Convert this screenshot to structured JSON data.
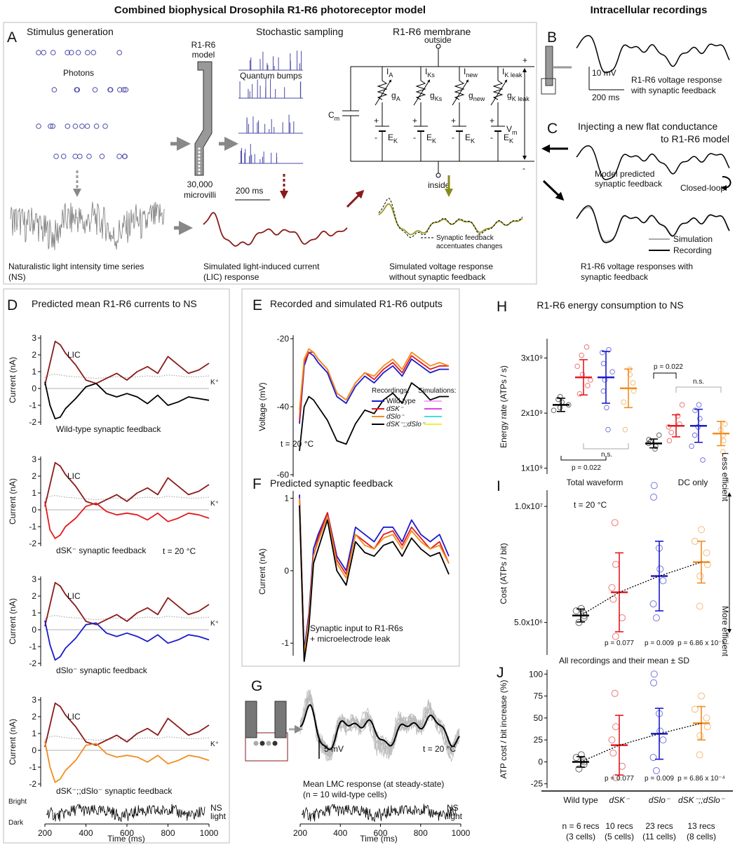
{
  "title": "Combined biophysical Drosophila R1-R6 photoreceptor model",
  "title_right": "Intracellular recordings",
  "panel_a": {
    "label": "A",
    "stimulus_generation": "Stimulus generation",
    "photons": "Photons",
    "model": [
      "R1-R6",
      "model"
    ],
    "microvilli": [
      "30,000",
      "microvilli"
    ],
    "stochastic_sampling": "Stochastic sampling",
    "quantum_bumps": "Quantum bumps",
    "membrane": "R1-R6 membrane",
    "outside": "outside",
    "inside": "inside",
    "scale_bar": "200 ms",
    "ns_caption": [
      "Naturalistic light intensity time series",
      "(NS)"
    ],
    "lic_caption": [
      "Simulated light-induced current",
      "(LIC) response"
    ],
    "voltage_caption": [
      "Simulated voltage response",
      "without synaptic feedback"
    ],
    "feedback_note": [
      "Synaptic feedback",
      "accentuates changes"
    ],
    "circuit": {
      "capacitance": [
        "C",
        "m"
      ],
      "voltage": [
        "V",
        "m"
      ],
      "plus": "+",
      "minus": "-",
      "branches": [
        {
          "current": [
            "I",
            "A"
          ],
          "conductance": [
            "g",
            "A"
          ],
          "reversal": [
            "E",
            "K"
          ]
        },
        {
          "current": [
            "I",
            "Ks"
          ],
          "conductance": [
            "g",
            "Ks"
          ],
          "reversal": [
            "E",
            "K"
          ]
        },
        {
          "current": [
            "I",
            "new"
          ],
          "conductance": [
            "g",
            "new"
          ],
          "reversal": [
            "E",
            "K"
          ]
        },
        {
          "current": [
            "I",
            "K leak"
          ],
          "conductance": [
            "g",
            "K leak"
          ],
          "reversal": [
            "E",
            "K"
          ]
        }
      ]
    }
  },
  "panel_b": {
    "label": "B",
    "scale_v": "10 mV",
    "scale_t": "200 ms",
    "caption": [
      "R1-R6 voltage response",
      "with synaptic feedback"
    ]
  },
  "panel_c": {
    "label": "C",
    "title": [
      "Injecting a new flat conductance",
      "to R1-R6 model"
    ],
    "model_note": [
      "Model predicted",
      "synaptic feedback"
    ],
    "closed_loop": "Closed-loop",
    "legend": [
      {
        "name": "Simulation",
        "color": "#aaaaaa"
      },
      {
        "name": "Recording",
        "color": "#000000"
      }
    ],
    "caption": [
      "R1-R6 voltage responses with",
      "synaptic feedback"
    ]
  },
  "panel_d": {
    "label": "D",
    "title": "Predicted mean R1-R6 currents to NS",
    "y_label": "Current (nA)",
    "x_label": "Time (ms)",
    "ylim": [
      -2,
      3
    ],
    "yticks": [
      -2,
      -1,
      0,
      1,
      2,
      3
    ],
    "xlim": [
      200,
      1000
    ],
    "xticks": [
      200,
      400,
      600,
      800,
      1000
    ],
    "temperature": "t = 20 °C",
    "x": [
      200,
      225,
      250,
      275,
      300,
      350,
      400,
      450,
      500,
      550,
      600,
      650,
      700,
      750,
      800,
      850,
      900,
      950,
      1000
    ],
    "lic": {
      "name": "LIC",
      "color": "#8b1a1a",
      "values": [
        0.2,
        1.5,
        2.8,
        2.6,
        2.1,
        1.4,
        0.5,
        0.3,
        0.6,
        0.9,
        0.5,
        1.0,
        1.3,
        0.9,
        1.9,
        1.4,
        0.9,
        1.1,
        1.5
      ]
    },
    "k": {
      "name": "K⁺",
      "color": "#999999",
      "values": [
        0.65,
        0.8,
        0.85,
        0.8,
        0.75,
        0.7,
        0.65,
        0.6,
        0.65,
        0.7,
        0.65,
        0.7,
        0.75,
        0.7,
        0.8,
        0.75,
        0.7,
        0.7,
        0.75
      ]
    },
    "feedback": [
      {
        "name": "Wild-type synaptic feedback",
        "color": "#000000",
        "values": [
          0.4,
          -1.0,
          -1.8,
          -1.7,
          -1.2,
          -0.6,
          0.1,
          0.3,
          -0.3,
          -0.5,
          -0.3,
          -0.5,
          -0.9,
          -0.4,
          -1.0,
          -0.8,
          -0.5,
          -0.6,
          -0.7
        ]
      },
      {
        "name": "dSK⁻ synaptic feedback",
        "color": "#e31a1c",
        "values": [
          0.5,
          -1.2,
          -1.7,
          -1.5,
          -1.0,
          -0.5,
          0.2,
          0.4,
          -0.1,
          -0.3,
          -0.2,
          -0.3,
          -0.6,
          -0.2,
          -0.7,
          -0.5,
          -0.2,
          -0.3,
          -0.5
        ]
      },
      {
        "name": "dSlo⁻ synaptic feedback",
        "color": "#1a1acc",
        "values": [
          0.55,
          -0.9,
          -1.8,
          -1.6,
          -1.1,
          -0.5,
          0.3,
          0.4,
          -0.2,
          -0.4,
          -0.2,
          -0.4,
          -0.7,
          -0.3,
          -0.8,
          -0.6,
          -0.3,
          -0.4,
          -0.6
        ]
      },
      {
        "name": "dSK⁻;;dSlo⁻ synaptic feedback",
        "color": "#f28c1f",
        "values": [
          0.55,
          -1.0,
          -1.9,
          -1.7,
          -1.2,
          -0.6,
          0.3,
          0.4,
          -0.2,
          -0.4,
          -0.3,
          -0.4,
          -0.7,
          -0.3,
          -0.8,
          -0.6,
          -0.3,
          -0.4,
          -0.6
        ]
      }
    ],
    "light": {
      "bright": "Bright",
      "dark": "Dark",
      "name": [
        "NS",
        "light"
      ]
    }
  },
  "panel_e": {
    "label": "E",
    "title": "Recorded and simulated R1-R6 outputs",
    "y_label": "Voltage (mV)",
    "ylim": [
      -60,
      -20
    ],
    "yticks": [
      -60,
      -40,
      -20
    ],
    "xlim": [
      200,
      1000
    ],
    "temperature": "t = 20 °C",
    "legend_recordings": "Recordings:",
    "legend_simulations": "Simulations:",
    "x": [
      200,
      225,
      250,
      275,
      300,
      350,
      400,
      450,
      500,
      550,
      600,
      650,
      700,
      750,
      800,
      850,
      900,
      950,
      1000
    ],
    "series": [
      {
        "name": "Wild-type",
        "color": "#1a1acc",
        "sim_color": "#f4a6f4",
        "values": [
          -45,
          -28,
          -24,
          -25,
          -27,
          -30,
          -37,
          -39,
          -34,
          -31,
          -33,
          -30,
          -28,
          -31,
          -26,
          -28,
          -30,
          -29,
          -29
        ]
      },
      {
        "name": "dSK⁻",
        "color": "#e31a1c",
        "sim_color": "#e040e0",
        "values": [
          -44,
          -27,
          -24,
          -24,
          -26,
          -29,
          -36,
          -38,
          -33,
          -30,
          -32,
          -29,
          -27,
          -30,
          -25,
          -27,
          -29,
          -28,
          -28
        ]
      },
      {
        "name": "dSlo⁻",
        "color": "#f28c1f",
        "sim_color": "#40e0e0",
        "values": [
          -41,
          -26,
          -23,
          -24,
          -26,
          -29,
          -36,
          -38,
          -33,
          -30,
          -31,
          -28,
          -26,
          -29,
          -24,
          -26,
          -28,
          -27,
          -28
        ]
      },
      {
        "name": "dSK⁻;;dSlo⁻",
        "color": "#000000",
        "sim_color": "#f0f040",
        "values": [
          -53,
          -40,
          -37,
          -38,
          -40,
          -44,
          -50,
          -51,
          -45,
          -41,
          -42,
          -38,
          -36,
          -39,
          -33,
          -35,
          -38,
          -37,
          -37
        ]
      }
    ]
  },
  "panel_f": {
    "label": "F",
    "title": "Predicted synaptic feedback",
    "y_label": "Current (nA)",
    "ylim": [
      -1.25,
      1.15
    ],
    "yticks": [
      -1,
      0,
      1
    ],
    "xlim": [
      200,
      1000
    ],
    "note": [
      "Synaptic input to R1-R6s",
      "+ microelectrode leak"
    ],
    "x": [
      200,
      225,
      250,
      275,
      300,
      350,
      400,
      450,
      500,
      550,
      600,
      650,
      700,
      750,
      800,
      850,
      900,
      950,
      1000
    ],
    "series": [
      {
        "color": "#1a1acc",
        "values": [
          1.05,
          -1.1,
          -0.6,
          0.3,
          0.5,
          0.8,
          0.2,
          0.0,
          0.6,
          0.5,
          0.4,
          0.6,
          0.6,
          0.4,
          0.7,
          0.5,
          0.4,
          0.5,
          0.2
        ]
      },
      {
        "color": "#e31a1c",
        "values": [
          1.0,
          -1.2,
          -0.65,
          0.2,
          0.45,
          0.8,
          0.15,
          -0.05,
          0.5,
          0.4,
          0.3,
          0.5,
          0.55,
          0.35,
          0.6,
          0.45,
          0.3,
          0.4,
          0.1
        ]
      },
      {
        "color": "#f28c1f",
        "values": [
          1.0,
          -1.15,
          -0.7,
          0.2,
          0.4,
          0.75,
          0.1,
          -0.1,
          0.5,
          0.35,
          0.3,
          0.45,
          0.5,
          0.3,
          0.55,
          0.4,
          0.3,
          0.35,
          0.1
        ]
      },
      {
        "color": "#000000",
        "values": [
          0.9,
          -1.25,
          -0.8,
          0.1,
          0.3,
          0.7,
          0.0,
          -0.2,
          0.4,
          0.25,
          0.2,
          0.35,
          0.4,
          0.2,
          0.45,
          0.3,
          0.2,
          0.25,
          -0.05
        ]
      }
    ]
  },
  "panel_g": {
    "label": "G",
    "scale_bar": "5 mV",
    "temperature": "t = 20 °C",
    "caption": [
      "Mean LMC response (at steady-state)",
      "(n = 10 wild-type cells)"
    ],
    "light": [
      "NS",
      "light"
    ],
    "x_label": "Time (ms)",
    "xlim": [
      200,
      1000
    ],
    "xticks": [
      200,
      400,
      600,
      800,
      1000
    ]
  },
  "genotypes": [
    {
      "name": "Wild type",
      "color": "#000000",
      "recs": "n = 6 recs",
      "cells": "(3 cells)"
    },
    {
      "name": "dSK⁻",
      "color": "#e31a1c",
      "recs": "10 recs",
      "cells": "(5 cells)"
    },
    {
      "name": "dSlo⁻",
      "color": "#1a1acc",
      "recs": "23 recs",
      "cells": "(11 cells)"
    },
    {
      "name": "dSK⁻;;dSlo⁻",
      "color": "#f28c1f",
      "recs": "13 recs",
      "cells": "(8 cells)"
    }
  ],
  "panel_h": {
    "label": "H",
    "title": "R1-R6 energy consumption to NS",
    "y_label": "Energy rate (ATPs / s)",
    "ylim": [
      920000000,
      3300000000
    ],
    "yticks": [
      {
        "value": 1000000000,
        "label": "1x10⁹"
      },
      {
        "value": 2000000000,
        "label": "2x10⁹"
      },
      {
        "value": 3000000000,
        "label": "3x10⁹"
      }
    ],
    "group_labels": [
      "Total waveform",
      "DC only"
    ],
    "p_total": "p = 0.022",
    "p_dc": "p = 0.022",
    "ns_total": "n.s.",
    "ns_dc": "n.s.",
    "total": [
      {
        "mean": 2150000000,
        "sd": 120000000,
        "points": [
          2050000000,
          2100000000,
          2150000000,
          2200000000,
          2250000000,
          2300000000
        ]
      },
      {
        "mean": 2650000000,
        "sd": 320000000,
        "points": [
          2350000000,
          2500000000,
          2600000000,
          2700000000,
          2850000000,
          3050000000,
          3200000000
        ]
      },
      {
        "mean": 2650000000,
        "sd": 470000000,
        "points": [
          1700000000,
          2100000000,
          2400000000,
          2600000000,
          2750000000,
          2900000000,
          3100000000,
          3150000000
        ]
      },
      {
        "mean": 2450000000,
        "sd": 350000000,
        "points": [
          1700000000,
          2200000000,
          2400000000,
          2550000000,
          2700000000,
          2800000000
        ]
      }
    ],
    "dc": [
      {
        "mean": 1450000000,
        "sd": 80000000,
        "points": [
          1350000000,
          1400000000,
          1450000000,
          1480000000,
          1520000000,
          1600000000
        ]
      },
      {
        "mean": 1770000000,
        "sd": 200000000,
        "points": [
          1500000000,
          1650000000,
          1750000000,
          1800000000,
          1950000000,
          2150000000
        ]
      },
      {
        "mean": 1770000000,
        "sd": 300000000,
        "points": [
          1150000000,
          1400000000,
          1600000000,
          1750000000,
          1900000000,
          2050000000,
          2150000000
        ]
      },
      {
        "mean": 1630000000,
        "sd": 220000000,
        "points": [
          1300000000,
          1500000000,
          1600000000,
          1700000000,
          1800000000
        ]
      }
    ]
  },
  "panel_i": {
    "label": "I",
    "y_label": "Cost (ATPs / bit)",
    "ylim": [
      3600000,
      10700000
    ],
    "yticks": [
      {
        "value": 5000000,
        "label": "5.0x10⁶"
      },
      {
        "value": 10000000,
        "label": "1.0x10⁷"
      }
    ],
    "temperature": "t = 20 °C",
    "p_values": [
      "p = 0.077",
      "p = 0.009",
      "p = 6.86 x 10⁻⁴"
    ],
    "note": "All recordings and their mean ± SD",
    "efficiency": [
      "Less efficient",
      "More efficient"
    ],
    "groups": [
      {
        "mean": 5300000,
        "sd": 280000,
        "points": [
          5000000,
          5200000,
          5300000,
          5400000,
          5500000,
          5600000
        ]
      },
      {
        "mean": 6300000,
        "sd": 1700000,
        "points": [
          4400000,
          5200000,
          6000000,
          6500000,
          7500000,
          9300000
        ]
      },
      {
        "mean": 7000000,
        "sd": 1500000,
        "points": [
          5200000,
          5800000,
          6800000,
          7300000,
          8200000,
          10400000,
          10900000
        ]
      },
      {
        "mean": 7600000,
        "sd": 900000,
        "points": [
          5700000,
          7000000,
          7500000,
          8000000,
          8500000,
          9000000
        ]
      }
    ]
  },
  "panel_j": {
    "label": "J",
    "y_label": "ATP cost / bit increase (%)",
    "ylim": [
      -30,
      105
    ],
    "yticks": [
      -25,
      0,
      25,
      50,
      75,
      100
    ],
    "p_values": [
      "p = 0.077",
      "p = 0.009",
      "p = 6.86 x 10⁻⁴"
    ],
    "groups": [
      {
        "mean": 0,
        "sd": 6,
        "points": [
          -8,
          -3,
          0,
          2,
          5,
          8
        ]
      },
      {
        "mean": 19,
        "sd": 34,
        "points": [
          -18,
          -5,
          10,
          25,
          40,
          78
        ]
      },
      {
        "mean": 32,
        "sd": 29,
        "points": [
          -10,
          5,
          25,
          35,
          55,
          90,
          100
        ]
      },
      {
        "mean": 44,
        "sd": 19,
        "points": [
          8,
          30,
          40,
          50,
          60,
          75
        ]
      }
    ]
  }
}
